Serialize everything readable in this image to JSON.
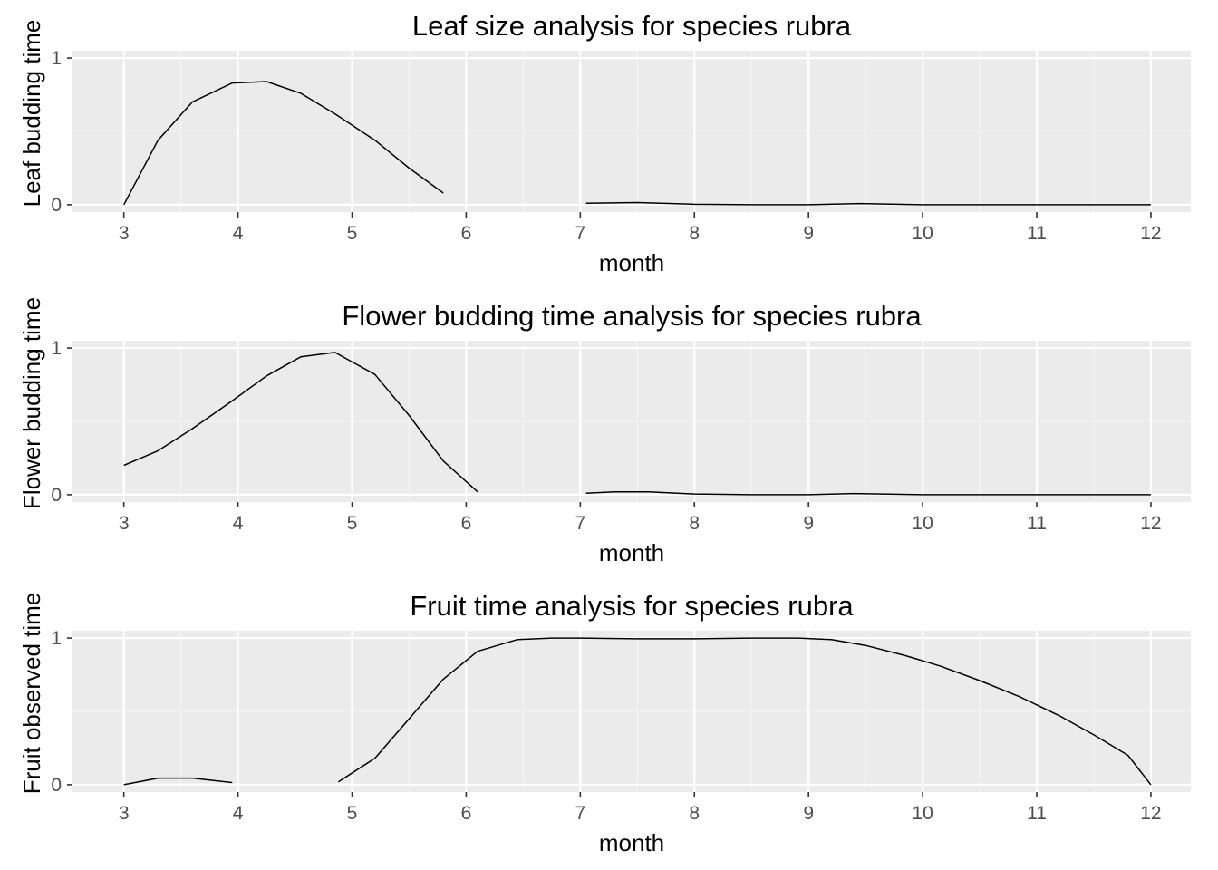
{
  "chart_data": [
    {
      "type": "line",
      "title": "Leaf size analysis for species rubra",
      "xlabel": "month",
      "ylabel": "Leaf budding time",
      "xlim": [
        2.55,
        12.35
      ],
      "ylim": [
        -0.05,
        1.05
      ],
      "x_ticks": [
        3,
        4,
        5,
        6,
        7,
        8,
        9,
        10,
        11,
        12
      ],
      "y_ticks": [
        0,
        1
      ],
      "grid": true,
      "legend": "none",
      "series": [
        {
          "segments": [
            [
              [
                3.0,
                0.0
              ],
              [
                3.3,
                0.44
              ],
              [
                3.6,
                0.7
              ],
              [
                3.95,
                0.83
              ],
              [
                4.25,
                0.84
              ],
              [
                4.55,
                0.76
              ],
              [
                4.85,
                0.62
              ],
              [
                5.2,
                0.44
              ],
              [
                5.5,
                0.25
              ],
              [
                5.8,
                0.08
              ]
            ],
            [
              [
                7.05,
                0.01
              ],
              [
                7.5,
                0.015
              ],
              [
                8.0,
                0.003
              ],
              [
                8.5,
                0.0
              ],
              [
                9.0,
                0.0
              ],
              [
                9.45,
                0.008
              ],
              [
                10.0,
                0.0
              ],
              [
                11.0,
                0.0
              ],
              [
                12.0,
                0.0
              ]
            ]
          ]
        }
      ]
    },
    {
      "type": "line",
      "title": "Flower budding time analysis for species rubra",
      "xlabel": "month",
      "ylabel": "Flower budding time",
      "xlim": [
        2.55,
        12.35
      ],
      "ylim": [
        -0.05,
        1.05
      ],
      "x_ticks": [
        3,
        4,
        5,
        6,
        7,
        8,
        9,
        10,
        11,
        12
      ],
      "y_ticks": [
        0,
        1
      ],
      "grid": true,
      "legend": "none",
      "series": [
        {
          "segments": [
            [
              [
                3.0,
                0.2
              ],
              [
                3.3,
                0.3
              ],
              [
                3.6,
                0.45
              ],
              [
                3.95,
                0.64
              ],
              [
                4.25,
                0.81
              ],
              [
                4.55,
                0.94
              ],
              [
                4.85,
                0.97
              ],
              [
                5.2,
                0.82
              ],
              [
                5.5,
                0.54
              ],
              [
                5.8,
                0.23
              ],
              [
                6.1,
                0.02
              ]
            ],
            [
              [
                7.05,
                0.01
              ],
              [
                7.3,
                0.02
              ],
              [
                7.6,
                0.02
              ],
              [
                8.0,
                0.005
              ],
              [
                8.5,
                0.0
              ],
              [
                9.0,
                0.0
              ],
              [
                9.4,
                0.008
              ],
              [
                10.0,
                0.0
              ],
              [
                11.0,
                0.0
              ],
              [
                12.0,
                0.0
              ]
            ]
          ]
        }
      ]
    },
    {
      "type": "line",
      "title": "Fruit time analysis for species rubra",
      "xlabel": "month",
      "ylabel": "Fruit observed time",
      "xlim": [
        2.55,
        12.35
      ],
      "ylim": [
        -0.05,
        1.05
      ],
      "x_ticks": [
        3,
        4,
        5,
        6,
        7,
        8,
        9,
        10,
        11,
        12
      ],
      "y_ticks": [
        0,
        1
      ],
      "grid": true,
      "legend": "none",
      "series": [
        {
          "segments": [
            [
              [
                3.0,
                0.0
              ],
              [
                3.3,
                0.045
              ],
              [
                3.6,
                0.045
              ],
              [
                3.95,
                0.015
              ]
            ],
            [
              [
                4.88,
                0.02
              ],
              [
                5.2,
                0.18
              ],
              [
                5.5,
                0.45
              ],
              [
                5.8,
                0.72
              ],
              [
                6.1,
                0.91
              ],
              [
                6.45,
                0.99
              ],
              [
                6.75,
                1.0
              ],
              [
                7.0,
                1.0
              ],
              [
                7.5,
                0.995
              ],
              [
                8.0,
                0.995
              ],
              [
                8.5,
                1.0
              ],
              [
                8.9,
                1.0
              ],
              [
                9.2,
                0.99
              ],
              [
                9.5,
                0.95
              ],
              [
                9.85,
                0.88
              ],
              [
                10.15,
                0.81
              ],
              [
                10.5,
                0.71
              ],
              [
                10.85,
                0.6
              ],
              [
                11.2,
                0.47
              ],
              [
                11.5,
                0.34
              ],
              [
                11.8,
                0.2
              ],
              [
                12.0,
                0.0
              ]
            ]
          ]
        }
      ]
    }
  ]
}
